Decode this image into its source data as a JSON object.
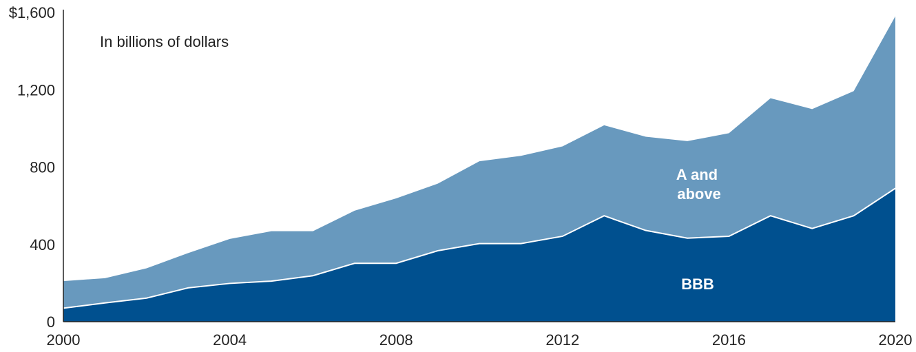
{
  "chart_data": {
    "type": "area",
    "stacked": true,
    "title": "",
    "note": "In billions of dollars",
    "xlabel": "",
    "ylabel": "",
    "x": [
      2000,
      2001,
      2002,
      2003,
      2004,
      2005,
      2006,
      2007,
      2008,
      2009,
      2010,
      2011,
      2012,
      2013,
      2014,
      2015,
      2016,
      2017,
      2018,
      2019,
      2020
    ],
    "xlim": [
      2000,
      2020
    ],
    "ylim": [
      0,
      1600
    ],
    "x_ticks": [
      {
        "value": 2000,
        "label": "2000"
      },
      {
        "value": 2004,
        "label": "2004"
      },
      {
        "value": 2008,
        "label": "2008"
      },
      {
        "value": 2012,
        "label": "2012"
      },
      {
        "value": 2016,
        "label": "2016"
      },
      {
        "value": 2020,
        "label": "2020"
      }
    ],
    "y_ticks": [
      {
        "value": 0,
        "label": "0"
      },
      {
        "value": 400,
        "label": "400"
      },
      {
        "value": 800,
        "label": "800"
      },
      {
        "value": 1200,
        "label": "1,200"
      },
      {
        "value": 1600,
        "label": "$1,600"
      }
    ],
    "grid": false,
    "series": [
      {
        "name": "BBB",
        "color": "#00508f",
        "values": [
          70,
          97,
          122,
          175,
          198,
          210,
          238,
          302,
          302,
          367,
          404,
          404,
          442,
          548,
          472,
          432,
          442,
          548,
          482,
          548,
          690
        ]
      },
      {
        "name": "A and above",
        "label_lines": [
          "A and",
          "above"
        ],
        "color": "#6899be",
        "values": [
          140,
          128,
          154,
          180,
          230,
          258,
          230,
          272,
          336,
          347,
          426,
          454,
          465,
          468,
          485,
          502,
          533,
          608,
          618,
          645,
          890
        ]
      }
    ],
    "totals": [
      210,
      225,
      276,
      355,
      428,
      468,
      468,
      574,
      638,
      714,
      830,
      858,
      907,
      1016,
      957,
      934,
      975,
      1156,
      1100,
      1193,
      1580
    ]
  }
}
